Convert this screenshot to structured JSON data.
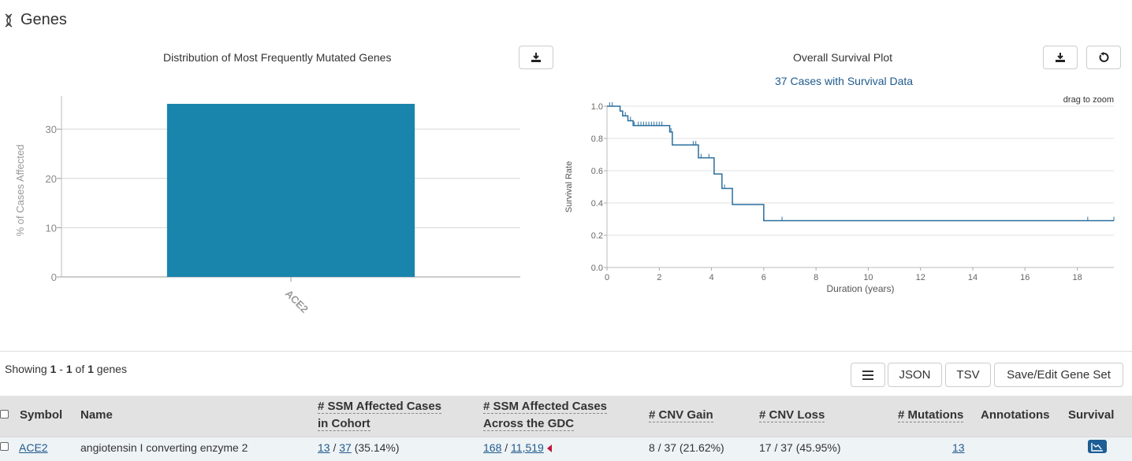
{
  "page": {
    "title": "Genes"
  },
  "bar_chart": {
    "title": "Distribution of Most Frequently Mutated Genes",
    "chart_data": {
      "type": "bar",
      "categories": [
        "ACE2"
      ],
      "values": [
        35.14
      ],
      "ylabel": "% of Cases Affected",
      "ylim": [
        0,
        35.14
      ],
      "yticks": [
        "0",
        "10",
        "20",
        "30"
      ],
      "grid": true
    }
  },
  "survival_chart": {
    "title": "Overall Survival Plot",
    "subtitle": "37 Cases with Survival Data",
    "hint": "drag to zoom",
    "chart_data": {
      "type": "line",
      "xlabel": "Duration (years)",
      "ylabel": "Survival Rate",
      "xlim": [
        0,
        19.4
      ],
      "ylim": [
        0,
        1.0
      ],
      "xticks": [
        "0",
        "2",
        "4",
        "6",
        "8",
        "10",
        "12",
        "14",
        "16",
        "18"
      ],
      "yticks": [
        "0.0",
        "0.2",
        "0.4",
        "0.6",
        "0.8",
        "1.0"
      ],
      "grid": true,
      "steps": [
        [
          0,
          1.0
        ],
        [
          0.5,
          0.97
        ],
        [
          0.6,
          0.94
        ],
        [
          0.8,
          0.91
        ],
        [
          1.0,
          0.88
        ],
        [
          2.4,
          0.84
        ],
        [
          2.5,
          0.76
        ],
        [
          3.5,
          0.68
        ],
        [
          4.1,
          0.58
        ],
        [
          4.4,
          0.49
        ],
        [
          4.8,
          0.39
        ],
        [
          6.0,
          0.29
        ],
        [
          19.4,
          0.29
        ]
      ],
      "censored": [
        0.1,
        0.2,
        0.5,
        0.7,
        0.9,
        1.05,
        1.2,
        1.3,
        1.4,
        1.5,
        1.6,
        1.7,
        1.8,
        1.9,
        2.0,
        2.1,
        2.45,
        3.3,
        3.4,
        3.6,
        3.9,
        4.1,
        4.5,
        4.8,
        6.0,
        6.7,
        18.4,
        19.4
      ]
    }
  },
  "table_controls": {
    "showing_prefix": "Showing",
    "range_start": "1",
    "range_sep": "-",
    "range_end": "1",
    "of": "of",
    "total": "1",
    "unit": "genes",
    "json_label": "JSON",
    "tsv_label": "TSV",
    "save_label": "Save/Edit Gene Set"
  },
  "table": {
    "headers": {
      "symbol": "Symbol",
      "name": "Name",
      "ssm_cohort_1": "# SSM Affected Cases",
      "ssm_cohort_2": "in Cohort",
      "ssm_gdc_1": "# SSM Affected Cases",
      "ssm_gdc_2": "Across the GDC",
      "cnv_gain": "# CNV Gain",
      "cnv_loss": "# CNV Loss",
      "mutations": "# Mutations",
      "annotations": "Annotations",
      "survival": "Survival"
    },
    "rows": [
      {
        "symbol": "ACE2",
        "name": "angiotensin I converting enzyme 2",
        "ssm_cohort_num": "13",
        "ssm_cohort_den": "37",
        "ssm_cohort_pct": "(35.14%)",
        "ssm_gdc_num": "168",
        "ssm_gdc_den": "11,519",
        "cnv_gain": "8 / 37 (21.62%)",
        "cnv_loss": "17 / 37 (45.95%)",
        "mutations": "13"
      }
    ]
  },
  "colors": {
    "bar": "#1a85ac",
    "survival_line": "#2a6e9e",
    "link": "#1f5a8c",
    "survival_icon": "#1c5e95",
    "gdc_marker": "#c0143c"
  }
}
